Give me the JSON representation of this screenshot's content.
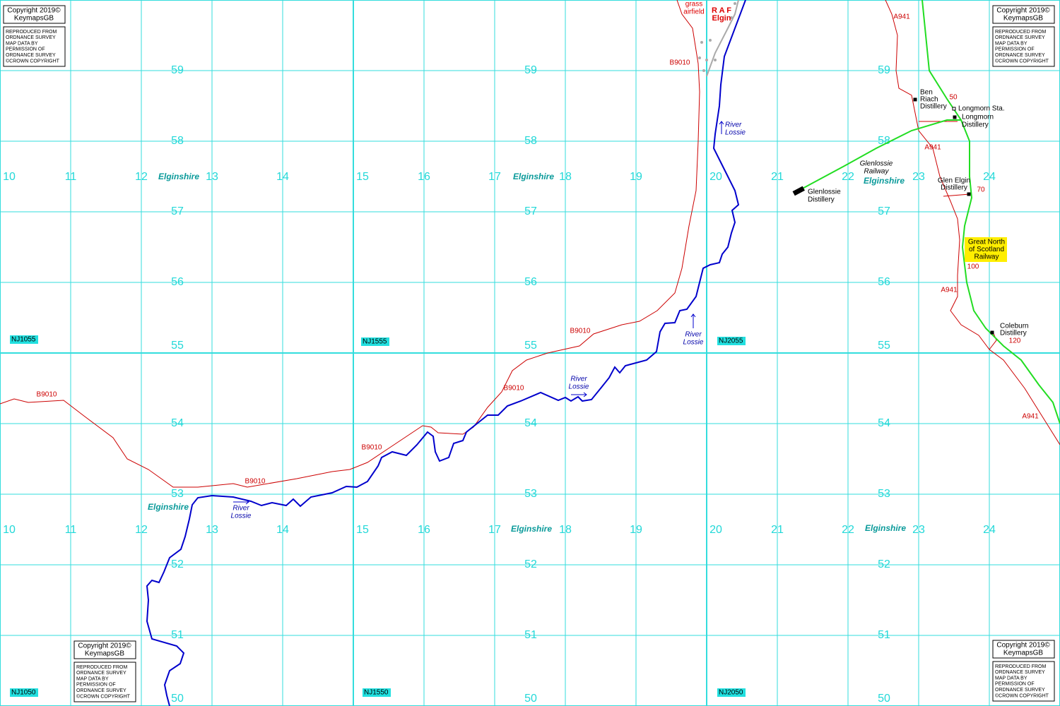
{
  "eastings": [
    "10",
    "11",
    "12",
    "13",
    "14",
    "15",
    "16",
    "17",
    "18",
    "19",
    "20",
    "21",
    "22",
    "23",
    "24"
  ],
  "northings": [
    "59",
    "58",
    "57",
    "56",
    "55",
    "54",
    "53",
    "52",
    "51",
    "50"
  ],
  "squares": [
    "NJ1055",
    "NJ1555",
    "NJ2055",
    "NJ1050",
    "NJ1550",
    "NJ2050"
  ],
  "copyright": {
    "line1": "Copyright 2019©",
    "line2": "KeymapsGB",
    "notice": [
      "REPRODUCED FROM",
      "ORDNANCE SURVEY",
      "MAP DATA BY",
      "PERMISSION OF",
      "ORDNANCE SURVEY",
      "©CROWN COPYRIGHT"
    ]
  },
  "labels": [
    [
      "Elginshire"
    ],
    [
      "Elginshire"
    ],
    [
      "Elginshire"
    ],
    [
      "Elginshire"
    ],
    [
      "Elginshire"
    ],
    [
      "Elginshire"
    ],
    [
      "B9010"
    ],
    [
      "B9010"
    ],
    [
      "B9010"
    ],
    [
      "B9010"
    ],
    [
      "B9010"
    ],
    [
      "B9010"
    ],
    [
      "A941"
    ],
    [
      "A941"
    ],
    [
      "A941"
    ],
    [
      "A941"
    ],
    [
      "River",
      "Lossie"
    ],
    [
      "River",
      "Lossie"
    ],
    [
      "River",
      "Lossie"
    ],
    [
      "River",
      "Lossie"
    ],
    [
      "grass",
      "airfield"
    ],
    [
      "R A F",
      "Elgin"
    ],
    [
      "Ben",
      "Riach",
      "Distillery"
    ],
    [
      "Longmorn Sta."
    ],
    [
      "Longmorn",
      "Distillery"
    ],
    [
      "Glenlossie",
      "Railway"
    ],
    [
      "Glenlossie",
      "Distillery"
    ],
    [
      "Glen Elgin",
      "Distillery"
    ],
    [
      "Great North",
      "of Scotland",
      "Railway"
    ],
    [
      "Coleburn",
      "Distillery"
    ],
    [
      "50"
    ],
    [
      "70"
    ],
    [
      "100"
    ],
    [
      "120"
    ]
  ]
}
